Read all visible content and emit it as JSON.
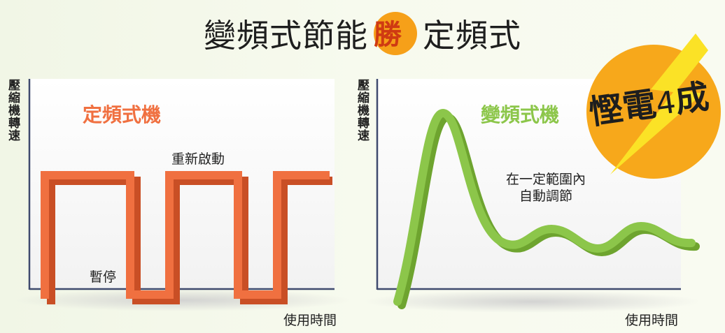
{
  "title": {
    "part1": "變頻式節能",
    "highlight": "勝",
    "part2": "定頻式"
  },
  "badge": {
    "text_main": "慳電",
    "text_number": "4",
    "text_suffix": "成",
    "bg_color": "#f7a81b",
    "bolt_color": "#fbe226"
  },
  "left_panel": {
    "title": "定頻式機",
    "title_color": "#f07040",
    "y_axis_label": "壓縮機轉速",
    "x_axis_label": "使用時間",
    "annotation_restart": "重新啟動",
    "annotation_pause": "暫停",
    "line_color": "#f07040"
  },
  "right_panel": {
    "title": "變頻式機",
    "title_color": "#8cc64a",
    "y_axis_label": "壓縮機轉速",
    "x_axis_label": "使用時間",
    "annotation_line1": "在一定範圍內",
    "annotation_line2": "自動調節",
    "line_color": "#8cc64a"
  }
}
